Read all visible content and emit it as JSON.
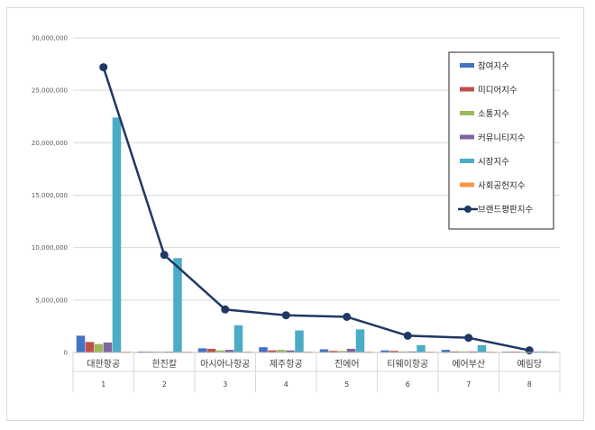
{
  "chart_data": {
    "type": "bar",
    "categories": [
      "대한항공",
      "한진칼",
      "아시아나항공",
      "제주항공",
      "진에어",
      "티웨이항공",
      "에어부산",
      "예림당"
    ],
    "ranks": [
      "1",
      "2",
      "3",
      "4",
      "5",
      "6",
      "7",
      "8"
    ],
    "ylim": [
      0,
      30000000
    ],
    "yticks": [
      "30,000,000",
      "25,000,000",
      "20,000,000",
      "15,000,000",
      "10,000,000",
      "5,000,000",
      "0"
    ],
    "grid": true,
    "legend_position": "top-right",
    "series": [
      {
        "name": "참여지수",
        "kind": "bar",
        "color": "#4472c4",
        "values": [
          1600000,
          50000,
          400000,
          500000,
          300000,
          200000,
          250000,
          30000
        ]
      },
      {
        "name": "미디어지수",
        "kind": "bar",
        "color": "#c0504d",
        "values": [
          1000000,
          80000,
          350000,
          200000,
          150000,
          150000,
          100000,
          20000
        ]
      },
      {
        "name": "소통지수",
        "kind": "bar",
        "color": "#9bbb59",
        "values": [
          800000,
          30000,
          200000,
          250000,
          150000,
          100000,
          100000,
          20000
        ]
      },
      {
        "name": "커뮤니티지수",
        "kind": "bar",
        "color": "#8064a2",
        "values": [
          950000,
          40000,
          250000,
          200000,
          350000,
          100000,
          100000,
          20000
        ]
      },
      {
        "name": "시장지수",
        "kind": "bar",
        "color": "#4bacc6",
        "values": [
          22400000,
          9000000,
          2600000,
          2100000,
          2200000,
          700000,
          700000,
          100000
        ]
      },
      {
        "name": "사회공헌지수",
        "kind": "bar",
        "color": "#f79646",
        "values": [
          80000,
          50000,
          60000,
          40000,
          40000,
          30000,
          30000,
          10000
        ]
      },
      {
        "name": "브랜드평판지수",
        "kind": "line",
        "color": "#1f3864",
        "values": [
          27200000,
          9300000,
          4100000,
          3550000,
          3400000,
          1600000,
          1400000,
          200000
        ]
      }
    ]
  }
}
